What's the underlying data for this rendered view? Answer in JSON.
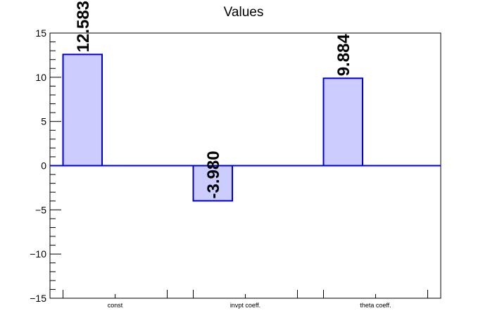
{
  "chart_data": {
    "type": "bar",
    "title": "Values",
    "categories": [
      "const",
      "invpt coeff.",
      "theta coeff."
    ],
    "values": [
      12.583,
      -3.98,
      9.884
    ],
    "value_labels": [
      "12.583",
      "-3.980",
      "9.884"
    ],
    "ylim": [
      -15,
      15
    ],
    "yticks": [
      -15,
      -10,
      -5,
      0,
      5,
      10,
      15
    ],
    "ytick_labels": [
      "−15",
      "−10",
      "−5",
      "0",
      "5",
      "10",
      "15"
    ],
    "xlabel": "",
    "ylabel": "",
    "grid": false,
    "colors": {
      "bar_fill": "#ccccff",
      "bar_edge": "#0000cc",
      "baseline": "#0000cc",
      "axis": "#000000"
    }
  }
}
